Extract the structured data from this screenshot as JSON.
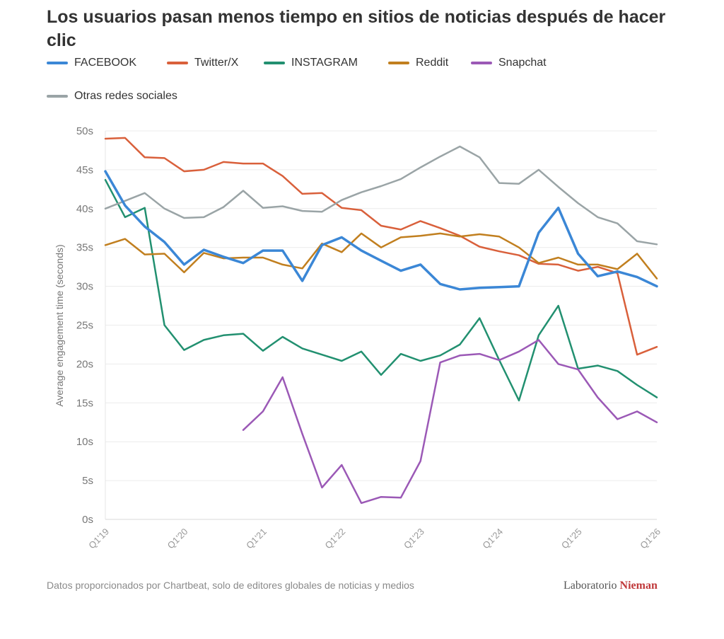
{
  "chart_data": {
    "type": "line",
    "title": "Los usuarios pasan menos tiempo en sitios de noticias después de hacer clic",
    "xlabel": "",
    "ylabel": "Average engagement time (seconds)",
    "ylim": [
      0,
      50
    ],
    "y_ticks": [
      0,
      5,
      10,
      15,
      20,
      25,
      30,
      35,
      40,
      45,
      50
    ],
    "y_tick_suffix": "s",
    "grid": true,
    "legend_position": "top-left",
    "x": [
      "Q1'19",
      "Q2'19",
      "Q3'19",
      "Q4'19",
      "Q1'20",
      "Q2'20",
      "Q3'20",
      "Q4'20",
      "Q1'21",
      "Q2'21",
      "Q3'21",
      "Q4'21",
      "Q1'22",
      "Q2'22",
      "Q3'22",
      "Q4'22",
      "Q1'23",
      "Q2'23",
      "Q3'23",
      "Q4'23",
      "Q1'24",
      "Q2'24",
      "Q3'24",
      "Q4'24",
      "Q1'25",
      "Q2'25",
      "Q3'25",
      "Q4'25",
      "Q1'26"
    ],
    "x_tick_labels": [
      "Q1'19",
      "Q1'20",
      "Q1'21",
      "Q1'22",
      "Q1'23",
      "Q1'24",
      "Q1'25",
      "Q1'26"
    ],
    "series": [
      {
        "name": "FACEBOOK",
        "color": "#3b87d6",
        "values": [
          44.8,
          40.4,
          37.7,
          35.7,
          32.8,
          34.7,
          33.8,
          33.0,
          34.6,
          34.6,
          30.7,
          35.3,
          36.3,
          34.6,
          33.3,
          32.0,
          32.8,
          30.3,
          29.6,
          29.8,
          29.9,
          30.0,
          36.9,
          40.1,
          34.2,
          31.3,
          31.9,
          31.2,
          30.0
        ]
      },
      {
        "name": "Twitter/X",
        "color": "#d9603b",
        "values": [
          49.0,
          49.1,
          46.6,
          46.5,
          44.8,
          45.0,
          46.0,
          45.8,
          45.8,
          44.2,
          41.9,
          42.0,
          40.1,
          39.8,
          37.8,
          37.3,
          38.4,
          37.5,
          36.5,
          35.1,
          34.5,
          34.0,
          32.9,
          32.8,
          32.0,
          32.5,
          31.7,
          21.2,
          22.2
        ]
      },
      {
        "name": "INSTAGRAM",
        "color": "#229070",
        "values": [
          43.7,
          38.9,
          40.1,
          25.0,
          21.8,
          23.1,
          23.7,
          23.9,
          21.7,
          23.5,
          22.0,
          21.2,
          20.4,
          21.6,
          18.6,
          21.3,
          20.4,
          21.1,
          22.5,
          25.9,
          20.5,
          15.3,
          23.7,
          27.5,
          19.4,
          19.8,
          19.1,
          17.3,
          15.7
        ]
      },
      {
        "name": "Reddit",
        "color": "#c17f1f",
        "values": [
          35.3,
          36.1,
          34.1,
          34.2,
          31.8,
          34.3,
          33.6,
          33.7,
          33.7,
          32.8,
          32.3,
          35.5,
          34.4,
          36.8,
          35.0,
          36.3,
          36.5,
          36.8,
          36.4,
          36.7,
          36.4,
          35.0,
          33.0,
          33.7,
          32.8,
          32.8,
          32.2,
          34.2,
          31.0
        ]
      },
      {
        "name": "Snapchat",
        "color": "#9b59b6",
        "values": [
          null,
          null,
          null,
          null,
          null,
          null,
          null,
          11.5,
          13.9,
          18.3,
          11.0,
          4.1,
          7.0,
          2.1,
          2.9,
          2.8,
          7.5,
          20.2,
          21.1,
          21.3,
          20.5,
          21.6,
          23.1,
          20.0,
          19.3,
          15.7,
          12.9,
          13.9,
          12.5
        ]
      },
      {
        "name": "Otras redes sociales",
        "color": "#9aa4a6",
        "values": [
          40.0,
          41.0,
          42.0,
          40.0,
          38.8,
          38.9,
          40.2,
          42.3,
          40.1,
          40.3,
          39.7,
          39.6,
          41.1,
          42.1,
          42.9,
          43.8,
          45.3,
          46.7,
          48.0,
          46.6,
          43.3,
          43.2,
          45.0,
          42.8,
          40.7,
          38.9,
          38.1,
          35.8,
          35.4
        ]
      }
    ]
  },
  "source_note": "Datos proporcionados por Chartbeat, solo de editores globales de noticias y medios",
  "brand": {
    "prefix": "Laboratorio",
    "accent": "Nieman"
  }
}
